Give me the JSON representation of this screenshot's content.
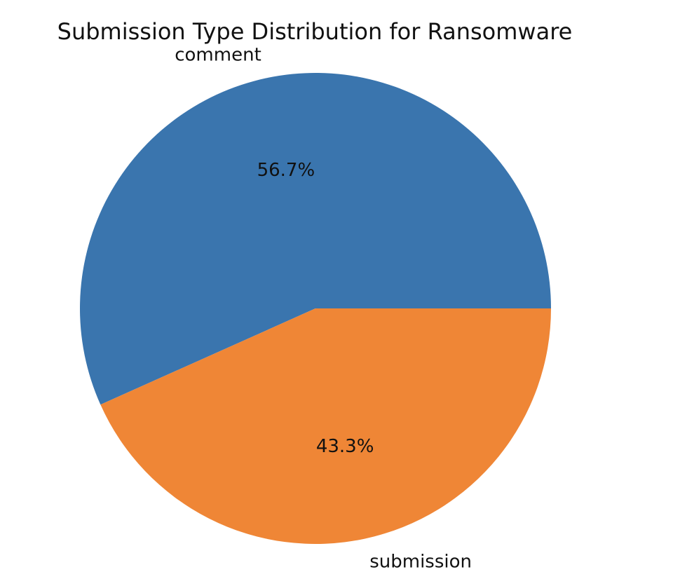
{
  "chart_data": {
    "type": "pie",
    "title": "Submission Type Distribution for Ransomware",
    "labels": [
      "comment",
      "submission"
    ],
    "values": [
      56.7,
      43.3
    ],
    "autopct_labels": [
      "56.7%",
      "43.3%"
    ],
    "colors": [
      "#3a75ae",
      "#ef8636"
    ],
    "start_angle_deg": 0,
    "direction": "counterclockwise"
  }
}
